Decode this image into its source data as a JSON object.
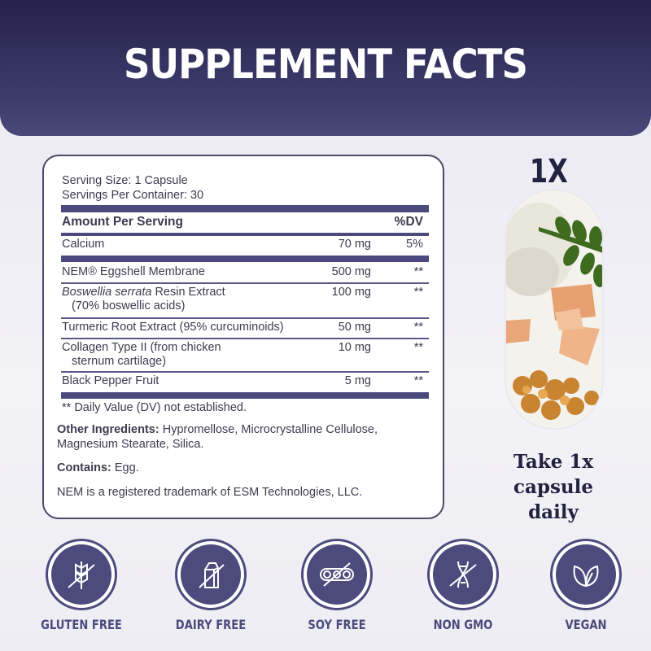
{
  "header": {
    "title": "SUPPLEMENT FACTS"
  },
  "facts": {
    "serving_size": "Serving Size: 1 Capsule",
    "servings_per_container": "Servings Per Container: 30",
    "amount_header": "Amount Per Serving",
    "dv_header": "%DV",
    "rows": [
      {
        "name": "Calcium",
        "amount": "70 mg",
        "dv": "5%"
      },
      {
        "name": "NEM® Eggshell Membrane",
        "amount": "500 mg",
        "dv": "**"
      },
      {
        "name_italic": "Boswellia serrata",
        "name": " Resin Extract",
        "sub": "(70% boswellic acids)",
        "amount": "100 mg",
        "dv": "**"
      },
      {
        "name": "Turmeric Root Extract (95% curcuminoids)",
        "amount": "50 mg",
        "dv": "**"
      },
      {
        "name": "Collagen Type II (from chicken",
        "sub": "sternum cartilage)",
        "amount": "10  mg",
        "dv": "**"
      },
      {
        "name": "Black Pepper Fruit",
        "amount": "5 mg",
        "dv": "**"
      }
    ],
    "footnote": "** Daily Value (DV) not established.",
    "other_label": "Other Ingredients:",
    "other_text": " Hypromellose, Microcrystalline Cellulose,",
    "other_text2": "Magnesium Stearate, Silica.",
    "contains_label": "Contains:",
    "contains_text": " Egg.",
    "trademark": "NEM is a registered trademark of ESM Technologies, LLC."
  },
  "dosage": {
    "count": "1X",
    "line1": "Take 1x",
    "line2": "capsule",
    "line3": "daily"
  },
  "badges": [
    {
      "label": "GLUTEN FREE",
      "icon": "wheat-crossed-icon"
    },
    {
      "label": "DAIRY FREE",
      "icon": "milk-carton-crossed-icon"
    },
    {
      "label": "SOY FREE",
      "icon": "soybean-crossed-icon"
    },
    {
      "label": "NON GMO",
      "icon": "dna-crossed-icon"
    },
    {
      "label": "VEGAN",
      "icon": "leaves-icon"
    }
  ],
  "colors": {
    "navy": "#2e2c5a",
    "badge": "#4d4b7d"
  }
}
